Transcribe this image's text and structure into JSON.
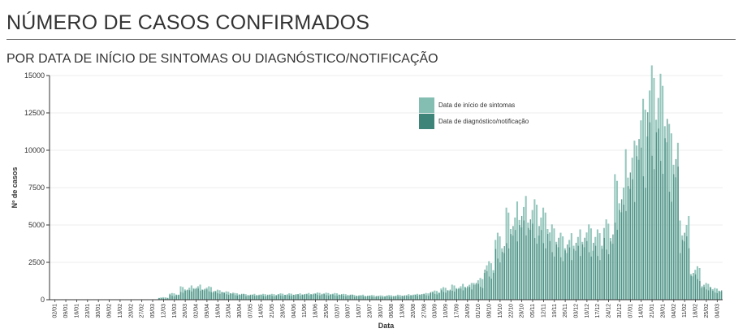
{
  "header": {
    "title": "NÚMERO DE CASOS CONFIRMADOS",
    "subtitle": "POR DATA DE INÍCIO DE SINTOMAS OU DIAGNÓSTICO/NOTIFICAÇÃO"
  },
  "colors": {
    "symptoms": "#84bdb2",
    "diagnosis": "#3e8478"
  },
  "chart_data": {
    "type": "bar",
    "xlabel": "Data",
    "ylabel": "Nº de casos",
    "ylim": [
      0,
      15000
    ],
    "yticks": [
      0,
      2500,
      5000,
      7500,
      10000,
      12500,
      15000
    ],
    "ytick_labels": [
      "0",
      "2500",
      "5000",
      "7500",
      "10000",
      "12500",
      "15000"
    ],
    "x_tick_labels": [
      "02/01",
      "09/01",
      "16/01",
      "23/01",
      "30/01",
      "06/02",
      "13/02",
      "20/02",
      "27/02",
      "05/03",
      "12/03",
      "19/03",
      "26/03",
      "02/04",
      "09/04",
      "16/04",
      "23/04",
      "30/04",
      "07/05",
      "14/05",
      "21/05",
      "28/05",
      "04/06",
      "11/06",
      "18/06",
      "25/06",
      "02/07",
      "09/07",
      "16/07",
      "23/07",
      "30/07",
      "06/08",
      "13/08",
      "20/08",
      "27/08",
      "03/09",
      "10/09",
      "17/09",
      "24/09",
      "01/10",
      "08/10",
      "15/10",
      "22/10",
      "29/10",
      "05/11",
      "12/11",
      "19/11",
      "26/11",
      "03/12",
      "10/12",
      "17/12",
      "24/12",
      "31/12",
      "07/01",
      "14/01",
      "21/01",
      "28/01",
      "04/02",
      "11/02",
      "18/02",
      "25/02",
      "04/03"
    ],
    "legend": {
      "position": "top-right"
    },
    "series": [
      {
        "name": "Data de início de sintomas",
        "values": [
          0,
          0,
          0,
          0,
          0,
          0,
          0,
          0,
          0,
          0,
          150,
          400,
          800,
          900,
          800,
          600,
          500,
          400,
          350,
          350,
          350,
          380,
          380,
          400,
          430,
          420,
          400,
          350,
          300,
          280,
          260,
          280,
          300,
          350,
          400,
          550,
          750,
          900,
          1000,
          1300,
          2300,
          4000,
          5500,
          6200,
          6000,
          5500,
          4500,
          4000,
          4200,
          4500,
          4200,
          4800,
          7500,
          9500,
          12000,
          14000,
          13500,
          10500,
          5000,
          2000,
          1000,
          700
        ]
      },
      {
        "name": "Data de diagnóstico/notificação",
        "values": [
          0,
          0,
          0,
          0,
          0,
          0,
          0,
          0,
          0,
          0,
          100,
          300,
          600,
          700,
          650,
          500,
          420,
          350,
          300,
          300,
          300,
          320,
          330,
          340,
          360,
          350,
          330,
          300,
          260,
          240,
          220,
          240,
          260,
          300,
          340,
          450,
          600,
          700,
          800,
          1000,
          1800,
          3200,
          4400,
          5000,
          4800,
          4400,
          3700,
          3300,
          3400,
          3700,
          3400,
          3900,
          6000,
          7600,
          9600,
          11200,
          10800,
          8400,
          4000,
          1600,
          800,
          560
        ]
      }
    ]
  }
}
